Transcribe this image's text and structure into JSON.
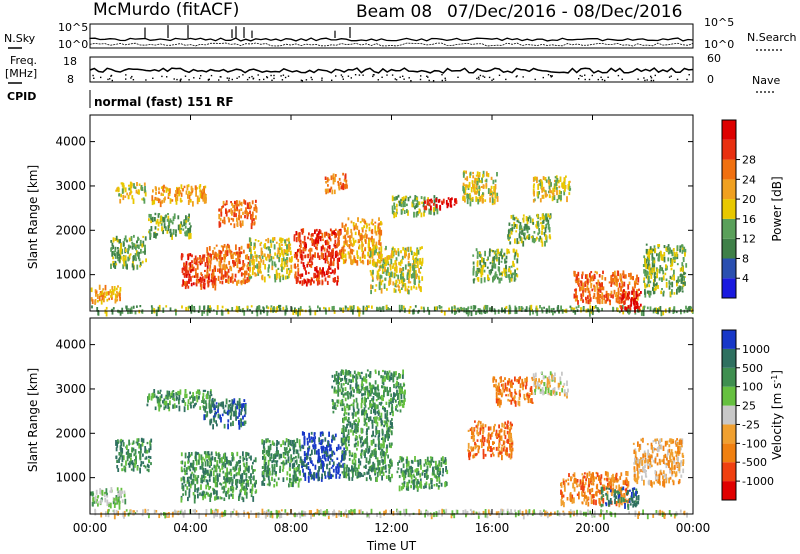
{
  "header": {
    "station": "McMurdo (fitACF)",
    "beam": "Beam 08",
    "date_range": "07/Dec/2016 - 08/Dec/2016"
  },
  "strips": {
    "nsky_label": "N.Sky",
    "nsearch_label": "N.Search",
    "nsky_tick_top": "10^5",
    "nsky_tick_bottom": "10^0",
    "nsearch_tick_top": "10^5",
    "nsearch_tick_bottom": "10^0",
    "freq_label": "Freq.",
    "freq_unit": "[MHz]",
    "freq_tick_top": "18",
    "freq_tick_bottom": "8",
    "nave_label": "Nave",
    "nave_tick_top": "60",
    "nave_tick_bottom": "0",
    "cpid_label": "CPID",
    "cpid_value": "normal (fast) 151 RF"
  },
  "colors": {
    "power": [
      "#1a1adf",
      "#2a4fb0",
      "#3f8048",
      "#5aa05a",
      "#e8c800",
      "#f0a020",
      "#f07010",
      "#e83010",
      "#dd0000"
    ],
    "velocity": [
      "#e00000",
      "#f04010",
      "#f08010",
      "#f0a030",
      "#c8c8c8",
      "#66c040",
      "#3f8f50",
      "#2f7060",
      "#1838c8"
    ]
  },
  "chart_data": [
    {
      "type": "heatmap",
      "title": "",
      "ylabel": "Slant Range [km]",
      "xlabel": "",
      "xlim": [
        "00:00",
        "24:00"
      ],
      "ylim": [
        180,
        4600
      ],
      "yticks": [
        1000,
        2000,
        3000,
        4000
      ],
      "xticks": [
        "00:00",
        "04:00",
        "08:00",
        "12:00",
        "16:00",
        "20:00",
        "00:00"
      ],
      "colorbar": {
        "label": "Power [dB]",
        "ticks": [
          "4",
          "8",
          "12",
          "16",
          "20",
          "24",
          "28"
        ],
        "range": [
          0,
          30
        ]
      },
      "patches": [
        {
          "t": [
            0.0,
            1.2
          ],
          "r": [
            420,
            780
          ],
          "level": 5
        },
        {
          "t": [
            0.0,
            24.0
          ],
          "r": [
            180,
            320
          ],
          "level": 3
        },
        {
          "t": [
            0.8,
            2.2
          ],
          "r": [
            1200,
            1900
          ],
          "level": 3
        },
        {
          "t": [
            1.0,
            2.2
          ],
          "r": [
            2700,
            3100
          ],
          "level": 4
        },
        {
          "t": [
            2.3,
            4.0
          ],
          "r": [
            1900,
            2400
          ],
          "level": 3
        },
        {
          "t": [
            2.4,
            4.6
          ],
          "r": [
            2650,
            3050
          ],
          "level": 5
        },
        {
          "t": [
            3.6,
            5.0
          ],
          "r": [
            750,
            1500
          ],
          "level": 7
        },
        {
          "t": [
            4.6,
            6.3
          ],
          "r": [
            850,
            1700
          ],
          "level": 6
        },
        {
          "t": [
            5.1,
            6.6
          ],
          "r": [
            2150,
            2700
          ],
          "level": 6
        },
        {
          "t": [
            6.3,
            8.0
          ],
          "r": [
            950,
            1850
          ],
          "level": 4
        },
        {
          "t": [
            8.1,
            10.0
          ],
          "r": [
            850,
            2050
          ],
          "level": 7
        },
        {
          "t": [
            9.3,
            10.2
          ],
          "r": [
            2900,
            3300
          ],
          "level": 6
        },
        {
          "t": [
            10.0,
            11.6
          ],
          "r": [
            1300,
            2300
          ],
          "level": 5
        },
        {
          "t": [
            11.1,
            13.2
          ],
          "r": [
            650,
            1650
          ],
          "level": 4
        },
        {
          "t": [
            12.0,
            13.8
          ],
          "r": [
            2400,
            2800
          ],
          "level": 3
        },
        {
          "t": [
            13.2,
            14.6
          ],
          "r": [
            2550,
            2750
          ],
          "level": 8
        },
        {
          "t": [
            14.8,
            16.2
          ],
          "r": [
            2650,
            3350
          ],
          "level": 4
        },
        {
          "t": [
            15.2,
            17.0
          ],
          "r": [
            900,
            1600
          ],
          "level": 3
        },
        {
          "t": [
            16.6,
            18.3
          ],
          "r": [
            1750,
            2400
          ],
          "level": 3
        },
        {
          "t": [
            17.6,
            19.1
          ],
          "r": [
            2700,
            3250
          ],
          "level": 4
        },
        {
          "t": [
            19.2,
            21.8
          ],
          "r": [
            400,
            1100
          ],
          "level": 6
        },
        {
          "t": [
            21.1,
            21.9
          ],
          "r": [
            250,
            700
          ],
          "level": 8
        },
        {
          "t": [
            22.0,
            23.7
          ],
          "r": [
            600,
            1700
          ],
          "level": 3
        }
      ]
    },
    {
      "type": "heatmap",
      "title": "",
      "ylabel": "Slant Range [km]",
      "xlabel": "Time UT",
      "xlim": [
        "00:00",
        "24:00"
      ],
      "ylim": [
        180,
        4600
      ],
      "yticks": [
        1000,
        2000,
        3000,
        4000
      ],
      "xticks": [
        "00:00",
        "04:00",
        "08:00",
        "12:00",
        "16:00",
        "20:00",
        "00:00"
      ],
      "colorbar": {
        "label": "Velocity [m s^-1]",
        "ticks": [
          "1000",
          "500",
          "100",
          "25",
          "-25",
          "-100",
          "-500",
          "-1000"
        ],
        "range": [
          -1200,
          1200
        ]
      },
      "patches": [
        {
          "t": [
            0.0,
            24.0
          ],
          "r": [
            180,
            300
          ],
          "level": 4
        },
        {
          "t": [
            0.0,
            1.4
          ],
          "r": [
            400,
            800
          ],
          "level": 5
        },
        {
          "t": [
            1.0,
            2.4
          ],
          "r": [
            1200,
            1900
          ],
          "level": 6
        },
        {
          "t": [
            2.2,
            4.8
          ],
          "r": [
            2600,
            3000
          ],
          "level": 6
        },
        {
          "t": [
            3.6,
            6.6
          ],
          "r": [
            550,
            1600
          ],
          "level": 6
        },
        {
          "t": [
            4.5,
            6.2
          ],
          "r": [
            2200,
            2800
          ],
          "level": 7
        },
        {
          "t": [
            6.8,
            8.4
          ],
          "r": [
            850,
            1900
          ],
          "level": 6
        },
        {
          "t": [
            8.4,
            10.1
          ],
          "r": [
            1000,
            2050
          ],
          "level": 8
        },
        {
          "t": [
            10.0,
            12.0
          ],
          "r": [
            1000,
            2400
          ],
          "level": 6
        },
        {
          "t": [
            9.6,
            12.5
          ],
          "r": [
            2450,
            3450
          ],
          "level": 6
        },
        {
          "t": [
            12.2,
            14.2
          ],
          "r": [
            800,
            1500
          ],
          "level": 6
        },
        {
          "t": [
            15.0,
            16.8
          ],
          "r": [
            1500,
            2300
          ],
          "level": 2
        },
        {
          "t": [
            16.0,
            17.6
          ],
          "r": [
            2700,
            3300
          ],
          "level": 2
        },
        {
          "t": [
            17.6,
            19.0
          ],
          "r": [
            2900,
            3400
          ],
          "level": 4
        },
        {
          "t": [
            18.7,
            21.4
          ],
          "r": [
            450,
            1150
          ],
          "level": 2
        },
        {
          "t": [
            20.3,
            21.8
          ],
          "r": [
            400,
            800
          ],
          "level": 7
        },
        {
          "t": [
            21.6,
            23.6
          ],
          "r": [
            900,
            1900
          ],
          "level": 3
        }
      ]
    }
  ]
}
